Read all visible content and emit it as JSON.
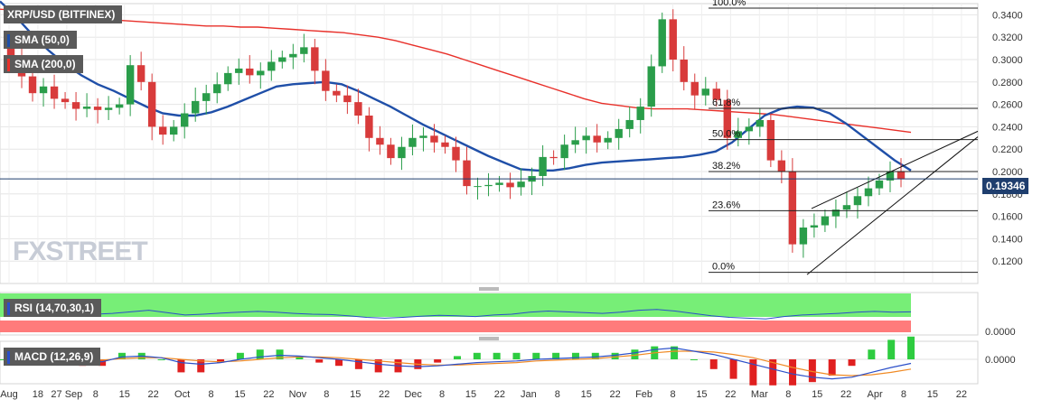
{
  "header": {
    "symbol": "XRP/USD (BITFINEX)",
    "sma50": "SMA (50,0)",
    "sma200": "SMA (200,0)",
    "rsi": "RSI (14,70,30,1)",
    "macd": "MACD (12,26,9)",
    "current_price": "0.19346",
    "watermark": "FXSTREET"
  },
  "colors": {
    "sma50": "#1f4fa8",
    "sma200": "#e8302a",
    "up": "#2a9d4a",
    "down": "#d83b3b",
    "rsi_line": "#2b4fc9",
    "rsi_ob": "#77ee77",
    "rsi_os": "#ff7b7b",
    "macd_line": "#2b4fc9",
    "signal_line": "#f08a24"
  },
  "chart_data": [
    {
      "type": "candlestick",
      "title": "XRP/USD (BITFINEX)",
      "y_ticks": [
        "0.3400",
        "0.3200",
        "0.3000",
        "0.2800",
        "0.2600",
        "0.2400",
        "0.2200",
        "0.2000",
        "0.1800",
        "0.1600",
        "0.1400",
        "0.1200"
      ],
      "ylim": [
        0.1,
        0.35
      ],
      "x_ticks": [
        "Aug",
        "18",
        "27 Sep",
        "8",
        "15",
        "22",
        "Oct",
        "8",
        "15",
        "22",
        "Nov",
        "8",
        "15",
        "22",
        "Dec",
        "8",
        "15",
        "22",
        "Jan",
        "8",
        "15",
        "22",
        "Feb",
        "8",
        "15",
        "22",
        "Mar",
        "8",
        "15",
        "22",
        "Apr",
        "8",
        "15",
        "22"
      ],
      "fibonacci": [
        {
          "label": "100.0%",
          "value": 0.346
        },
        {
          "label": "61.8%",
          "value": 0.2565
        },
        {
          "label": "50.0%",
          "value": 0.2285
        },
        {
          "label": "38.2%",
          "value": 0.2
        },
        {
          "label": "23.6%",
          "value": 0.165
        },
        {
          "label": "0.0%",
          "value": 0.11
        }
      ],
      "current_price": 0.19346,
      "sma50": [
        0.352,
        0.338,
        0.322,
        0.308,
        0.296,
        0.286,
        0.278,
        0.272,
        0.265,
        0.258,
        0.252,
        0.25,
        0.25,
        0.253,
        0.258,
        0.264,
        0.27,
        0.276,
        0.278,
        0.279,
        0.28,
        0.278,
        0.272,
        0.265,
        0.258,
        0.25,
        0.242,
        0.235,
        0.228,
        0.221,
        0.214,
        0.208,
        0.202,
        0.201,
        0.201,
        0.203,
        0.206,
        0.208,
        0.209,
        0.21,
        0.211,
        0.212,
        0.213,
        0.215,
        0.218,
        0.226,
        0.238,
        0.25,
        0.256,
        0.258,
        0.257,
        0.252,
        0.243,
        0.232,
        0.221,
        0.21,
        0.201
      ],
      "sma200": [
        0.345,
        0.344,
        0.343,
        0.342,
        0.34,
        0.338,
        0.336,
        0.335,
        0.334,
        0.333,
        0.332,
        0.331,
        0.33,
        0.33,
        0.329,
        0.329,
        0.328,
        0.327,
        0.326,
        0.325,
        0.324,
        0.322,
        0.32,
        0.317,
        0.313,
        0.309,
        0.305,
        0.3,
        0.295,
        0.29,
        0.285,
        0.28,
        0.275,
        0.27,
        0.265,
        0.261,
        0.259,
        0.257,
        0.256,
        0.256,
        0.256,
        0.255,
        0.254,
        0.253,
        0.252,
        0.251,
        0.249,
        0.247,
        0.245,
        0.243,
        0.241,
        0.239,
        0.237,
        0.235
      ],
      "series_close": [
        0.302,
        0.285,
        0.27,
        0.276,
        0.265,
        0.262,
        0.256,
        0.258,
        0.255,
        0.257,
        0.26,
        0.295,
        0.28,
        0.24,
        0.233,
        0.24,
        0.252,
        0.263,
        0.27,
        0.278,
        0.288,
        0.292,
        0.286,
        0.29,
        0.298,
        0.302,
        0.305,
        0.311,
        0.29,
        0.272,
        0.268,
        0.262,
        0.25,
        0.23,
        0.224,
        0.212,
        0.222,
        0.23,
        0.232,
        0.226,
        0.222,
        0.21,
        0.187,
        0.187,
        0.188,
        0.19,
        0.186,
        0.191,
        0.196,
        0.213,
        0.212,
        0.224,
        0.228,
        0.232,
        0.226,
        0.23,
        0.238,
        0.246,
        0.258,
        0.294,
        0.336,
        0.3,
        0.28,
        0.268,
        0.274,
        0.264,
        0.23,
        0.236,
        0.24,
        0.246,
        0.21,
        0.2,
        0.135,
        0.15,
        0.152,
        0.16,
        0.166,
        0.17,
        0.178,
        0.185,
        0.192,
        0.2,
        0.1935
      ],
      "series_open": [
        0.31,
        0.302,
        0.285,
        0.27,
        0.276,
        0.265,
        0.262,
        0.256,
        0.258,
        0.255,
        0.257,
        0.26,
        0.295,
        0.28,
        0.24,
        0.233,
        0.24,
        0.252,
        0.263,
        0.27,
        0.278,
        0.288,
        0.292,
        0.286,
        0.29,
        0.298,
        0.302,
        0.305,
        0.311,
        0.29,
        0.272,
        0.268,
        0.262,
        0.25,
        0.23,
        0.224,
        0.212,
        0.222,
        0.23,
        0.232,
        0.226,
        0.222,
        0.21,
        0.187,
        0.187,
        0.188,
        0.19,
        0.186,
        0.191,
        0.196,
        0.213,
        0.212,
        0.224,
        0.228,
        0.232,
        0.226,
        0.23,
        0.238,
        0.246,
        0.258,
        0.294,
        0.336,
        0.3,
        0.28,
        0.268,
        0.274,
        0.264,
        0.23,
        0.236,
        0.24,
        0.246,
        0.21,
        0.2,
        0.135,
        0.15,
        0.152,
        0.16,
        0.166,
        0.17,
        0.178,
        0.185,
        0.192,
        0.2
      ]
    },
    {
      "type": "line",
      "title": "RSI (14,70,30,1)",
      "series": [
        {
          "name": "RSI",
          "values": [
            52,
            50,
            48,
            51,
            49,
            50,
            52,
            56,
            60,
            54,
            48,
            50,
            53,
            55,
            57,
            55,
            52,
            50,
            49,
            46,
            42,
            40,
            42,
            45,
            47,
            46,
            44,
            48,
            50,
            55,
            58,
            56,
            54,
            52,
            55,
            60,
            62,
            58,
            52,
            46,
            42,
            40,
            38,
            44,
            48,
            50,
            52,
            55,
            57,
            55,
            56
          ]
        }
      ]
    },
    {
      "type": "line",
      "title": "MACD (12,26,9)",
      "ytick": "0.0000",
      "series": [
        {
          "name": "MACD",
          "values": [
            0.002,
            0.001,
            0.0,
            0.0,
            -0.002,
            -0.003,
            0.003,
            0.004,
            0.002,
            -0.004,
            -0.006,
            -0.004,
            0.0,
            0.003,
            0.005,
            0.004,
            0.002,
            0.0,
            -0.003,
            -0.006,
            -0.008,
            -0.009,
            -0.008,
            -0.006,
            -0.004,
            -0.003,
            -0.002,
            0.0,
            0.001,
            0.002,
            0.003,
            0.005,
            0.008,
            0.012,
            0.014,
            0.01,
            0.006,
            0.0,
            -0.006,
            -0.012,
            -0.018,
            -0.022,
            -0.024,
            -0.022,
            -0.016,
            -0.01,
            -0.005
          ]
        },
        {
          "name": "Signal",
          "values": [
            0.002,
            0.002,
            0.001,
            0.001,
            0.0,
            -0.001,
            0.001,
            0.002,
            0.002,
            0.0,
            -0.002,
            -0.003,
            -0.002,
            0.0,
            0.002,
            0.003,
            0.003,
            0.002,
            0.0,
            -0.002,
            -0.004,
            -0.006,
            -0.007,
            -0.007,
            -0.006,
            -0.005,
            -0.004,
            -0.002,
            -0.001,
            0.0,
            0.001,
            0.003,
            0.005,
            0.008,
            0.01,
            0.01,
            0.009,
            0.006,
            0.002,
            -0.004,
            -0.01,
            -0.015,
            -0.019,
            -0.02,
            -0.019,
            -0.016,
            -0.012
          ]
        }
      ]
    }
  ]
}
